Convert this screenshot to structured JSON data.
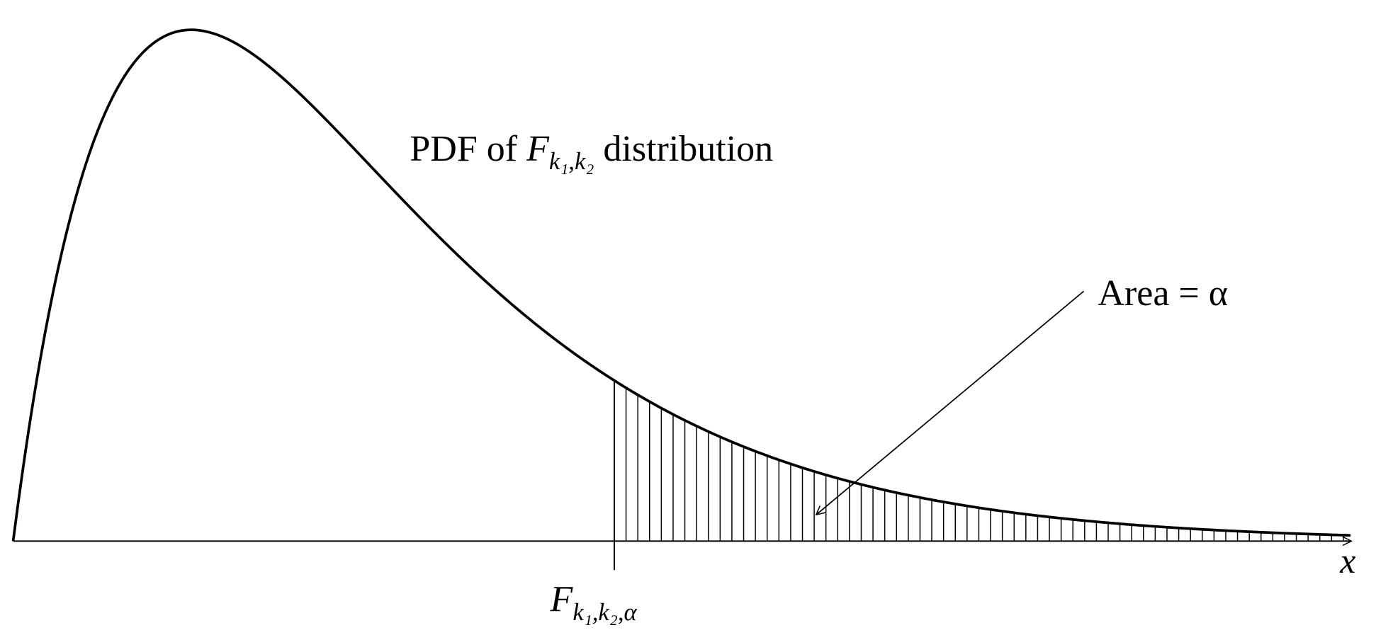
{
  "title": {
    "before": "PDF of",
    "symbol": "F",
    "subscript": "k₁,k₂",
    "after": "distribution"
  },
  "annotation": "Area = α",
  "critical_label": {
    "symbol": "F",
    "subscript": "k₁,k₂,α"
  },
  "axis_label": "x"
}
